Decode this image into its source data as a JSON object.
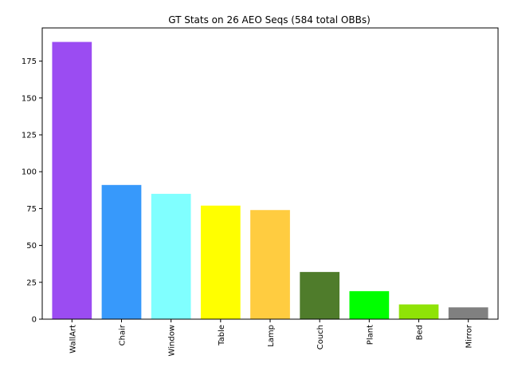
{
  "chart_data": {
    "type": "bar",
    "title": "GT Stats on 26 AEO Seqs (584 total OBBs)",
    "xlabel": "",
    "ylabel": "",
    "categories": [
      "WallArt",
      "Chair",
      "Window",
      "Table",
      "Lamp",
      "Couch",
      "Plant",
      "Bed",
      "Mirror"
    ],
    "values": [
      188,
      91,
      85,
      77,
      74,
      32,
      19,
      10,
      8
    ],
    "colors": [
      "#9b4cf2",
      "#3799fb",
      "#80ffff",
      "#ffff00",
      "#ffcc40",
      "#4f7c2b",
      "#00ff00",
      "#8fe307",
      "#808080"
    ],
    "ylim": [
      0,
      197.5
    ],
    "yticks": [
      0,
      25,
      50,
      75,
      100,
      125,
      150,
      175
    ],
    "grid": false,
    "legend": "none"
  }
}
